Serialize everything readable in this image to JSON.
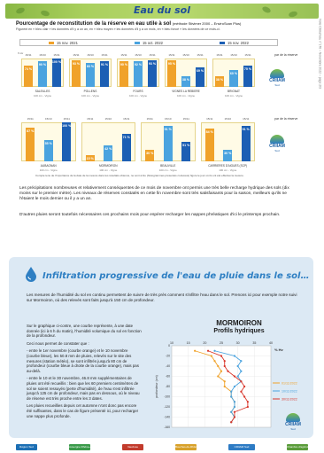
{
  "header": {
    "title": "Eau du sol",
    "heading": "Pourcentage de reconstitution de la réserve en eau utile à sol",
    "heading_note": "(méthode Stivimer 2000 – EnviroScan Plus)",
    "figure_note": "Figurent en « bleu clair » les données d'il y a un an, en « bleu moyen » les données d'il y a un mois, en « bleu foncé » les données de ce mois-ci.",
    "side_vertical": "Note Climat'eau n°176 – Novembre 2022 – page 2/3"
  },
  "legend": [
    {
      "label": "15 nov. 2021",
      "color": "#f0a22a"
    },
    {
      "label": "15 oct. 2022",
      "color": "#4aa3df"
    },
    {
      "label": "15 nov. 2022",
      "color": "#1c5fb4"
    }
  ],
  "colors": {
    "orange": "#f0a22a",
    "light_blue": "#4aa3df",
    "dark_blue": "#1c5fb4",
    "banner": "#a9cf5d",
    "section_bg": "#dce9f4",
    "section_title": "#2e7fc3"
  },
  "block1": {
    "y_label": "% Hv",
    "side_label": "par de la réserve",
    "dates": [
      "15/11",
      "15/10",
      "15/11"
    ],
    "groups": [
      {
        "name": "SALEILLES",
        "sub": "100 cm - Vigne",
        "values": [
          74,
          90,
          100
        ]
      },
      {
        "name": "POLLENS",
        "sub": "100 cm - Vigne",
        "values": [
          93,
          83,
          91
        ]
      },
      {
        "name": "FOURS",
        "sub": "100 cm - Vigne",
        "values": [
          90,
          92,
          93
        ]
      },
      {
        "name": "VIGNES LA REBIERE",
        "sub": "100 cm - Vigne",
        "values": [
          95,
          38,
          69
        ]
      },
      {
        "name": "BRIGNAT",
        "sub": "100 cm - Vigne",
        "values": [
          38,
          60,
          75
        ]
      }
    ],
    "labels_shown": [
      "74 %",
      "90 %",
      "100 %",
      "93 %",
      "83 %",
      "91 %",
      "90 %",
      "92 %",
      "93 %",
      "95 %",
      "38 %",
      "69 %",
      "38 %",
      "60 %",
      "75 %"
    ]
  },
  "block2": {
    "side_label": "par de la réserve",
    "dates": [
      "15/11",
      "15/10",
      "15/11"
    ],
    "groups": [
      {
        "name": "AUBAGNAN",
        "sub": "100 cm - Vigne",
        "values": [
          87,
          55,
          100
        ]
      },
      {
        "name": "MORMOIRON",
        "sub": "100 cm - Vigne",
        "values": [
          15,
          42,
          71
        ]
      },
      {
        "name": "BEAUVILLE",
        "sub": "100 cm - Vigne",
        "values": [
          30,
          91,
          51
        ]
      },
      {
        "name": "CARRIERES D'AIGUES (SCP)",
        "sub": "100 cm - Vigne",
        "values": [
          84,
          30,
          91
        ]
      }
    ],
    "labels_shown": [
      "87 %",
      "100 %",
      "42 %",
      "71 %",
      "91 %",
      "51 %",
      "84 %",
      "91 %"
    ]
  },
  "logo": {
    "word": "CRIIAM",
    "sub": "Sud"
  },
  "footnote": "Compte tenu de l'importance de la date de la mesure dans les résultats obtenus, ne sont à lire (histogrammes présentés ci-dessus) figure le jour où ils ont été effectué la mesure.",
  "paragraph1": "Les précipitations nombreuses et relativement conséquentes de ce mois de novembre ont permis une très belle recharge hydrique des sols (dix moins sur le premier mètre). Les niveaux de réserves constatés en cette fin novembre sont très satisfaisants pour la saison, meilleurs qu'ils ne l'étaient le mois dernier ou il y a un an.",
  "paragraph2": "D'autres pluies seront toutefois nécessaires ces prochains mois pour espérer recharger les nappes phréatiques d'ici le printemps prochain.",
  "section2": {
    "title": "Infiltration progressive de l'eau de pluie dans le sol…",
    "intro": "Les mesures de l'humidité du sol en continu permettent de suivre de très près comment s'infiltre l'eau dans le sol. Prenons ici pour exemple notre suivi sur Mormoiron, où des relevés sont faits jusqu'à 150 cm de profondeur.",
    "text1": "Sur le graphique ci-contre, une courbe représente, à une date donnée (ici à 6 h du matin), l'humidité volumique du sol en fonction de la profondeur.",
    "text2": "Ceci nous permet de constater que :",
    "bullet1": "- entre le 1er novembre (courbe orange) et le 10 novembre (courbe bleue), les 50.8 mm de pluies, relevés sur le site des mesures (station météo), se sont infiltrés jusqu'à 80 cm de profondeur (courbe bleue à droite de la courbe orange), mais pas au-delà.",
    "bullet2": "- entre le 10 et le 30 novembre, 46.8 mm supplémentaires de pluies ont été recueillis : bien que les 60 premiers centimètres de sol se soient ressuyés (perte d'humidité), de l'eau s'est infiltrée jusqu'à 125 cm de profondeur, mais pas en dessous, où le niveau de réserve est très proche entre les 3 dates.",
    "text3": "Les pluies recueillies depuis cet automne n'ont donc pas encore été suffisantes, dans le cas de figure présenté ici, pour recharger une nappe plus profonde."
  },
  "chart_data": {
    "type": "line",
    "title": "MORMOIRON",
    "subtitle": "Profils hydriques",
    "xlabel": "% Hv",
    "ylabel": "profondeur (cm)",
    "xlim": [
      10,
      40
    ],
    "ylim": [
      -160,
      0
    ],
    "x_ticks": [
      "10",
      "15",
      "20",
      "25",
      "30",
      "35",
      "40"
    ],
    "y_ticks": [
      "0",
      "-20",
      "-40",
      "-60",
      "-80",
      "-100",
      "-120",
      "-140",
      "-160"
    ],
    "series": [
      {
        "name": "01/11/2022",
        "color": "#f0a22a",
        "points": [
          [
            17,
            -10
          ],
          [
            22,
            -20
          ],
          [
            23,
            -30
          ],
          [
            24,
            -40
          ],
          [
            25,
            -50
          ],
          [
            24,
            -60
          ],
          [
            26,
            -70
          ],
          [
            26,
            -80
          ],
          [
            28,
            -90
          ],
          [
            28,
            -100
          ],
          [
            29,
            -110
          ],
          [
            29,
            -120
          ],
          [
            28,
            -130
          ],
          [
            29,
            -140
          ],
          [
            28,
            -150
          ]
        ]
      },
      {
        "name": "10/11/2022",
        "color": "#4aa3df",
        "points": [
          [
            23,
            -10
          ],
          [
            29,
            -20
          ],
          [
            31,
            -30
          ],
          [
            30,
            -40
          ],
          [
            31,
            -50
          ],
          [
            30,
            -60
          ],
          [
            31,
            -70
          ],
          [
            29,
            -80
          ],
          [
            28,
            -90
          ],
          [
            28,
            -100
          ],
          [
            29,
            -110
          ],
          [
            29,
            -120
          ],
          [
            28,
            -130
          ],
          [
            29,
            -140
          ],
          [
            28,
            -150
          ]
        ]
      },
      {
        "name": "30/11/2022",
        "color": "#d9362b",
        "points": [
          [
            21,
            -10
          ],
          [
            25,
            -20
          ],
          [
            26,
            -30
          ],
          [
            26,
            -40
          ],
          [
            27,
            -50
          ],
          [
            29,
            -60
          ],
          [
            31,
            -70
          ],
          [
            32,
            -80
          ],
          [
            31,
            -90
          ],
          [
            32,
            -100
          ],
          [
            33,
            -110
          ],
          [
            33,
            -120
          ],
          [
            29,
            -130
          ],
          [
            29,
            -140
          ],
          [
            28,
            -150
          ]
        ]
      }
    ]
  },
  "footer_logos": [
    "Région Sud",
    "Auvergne Rhône-Alpes",
    "Vaucluse",
    "Bouches-du-Rhône",
    "CRIIAM Sud",
    "Chambre d'agriculture"
  ]
}
